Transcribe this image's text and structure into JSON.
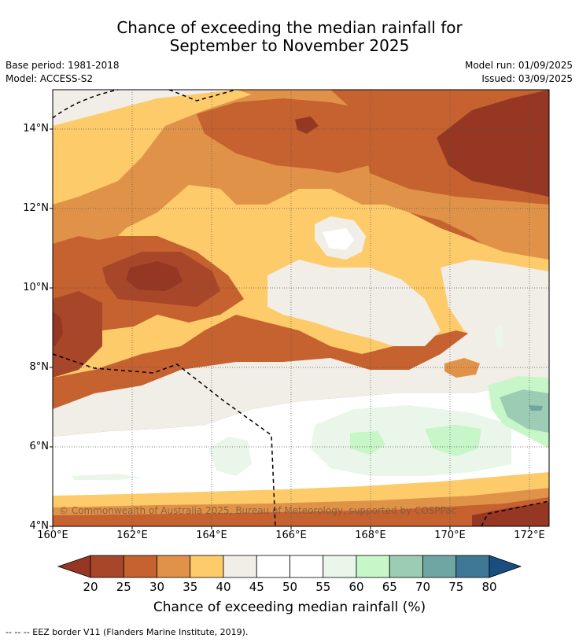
{
  "title_line1": "Chance of exceeding the median rainfall for",
  "title_line2": "September to November 2025",
  "base_period": "Base period: 1981-2018",
  "model": "Model: ACCESS-S2",
  "model_run": "Model run: 01/09/2025",
  "issued": "Issued: 03/09/2025",
  "copyright": "© Commonwealth of Australia 2025, Bureau of Meteorology, supported by COSPPac",
  "lat_labels": [
    "14°N",
    "12°N",
    "10°N",
    "8°N",
    "6°N",
    "4°N"
  ],
  "lon_labels": [
    "160°E",
    "162°E",
    "164°E",
    "166°E",
    "168°E",
    "170°E",
    "172°E"
  ],
  "colorbar": {
    "title": "Chance of exceeding median rainfall (%)",
    "ticks": [
      "20",
      "25",
      "30",
      "35",
      "40",
      "45",
      "50",
      "55",
      "60",
      "65",
      "70",
      "75",
      "80"
    ],
    "colors": [
      "#a8462a",
      "#c5622f",
      "#e09348",
      "#fecb6a",
      "#f1ede7",
      "#ffffff",
      "#ffffff",
      "#eaf6ea",
      "#c7f7c8",
      "#9ccdb4",
      "#6fa6a4",
      "#3f7897"
    ],
    "under_color": "#953723",
    "over_color": "#1a4e83"
  },
  "footnote": "--  --  -- EEZ border V11 (Flanders Marine Institute, 2019).",
  "palette": {
    "p20": "#953723",
    "p25": "#a8462a",
    "p30": "#c5622f",
    "p35": "#e09348",
    "p40": "#fecb6a",
    "p45": "#f1ede7",
    "p55": "#eaf6ea",
    "p60": "#c7f7c8",
    "p65": "#9ccdb4"
  }
}
